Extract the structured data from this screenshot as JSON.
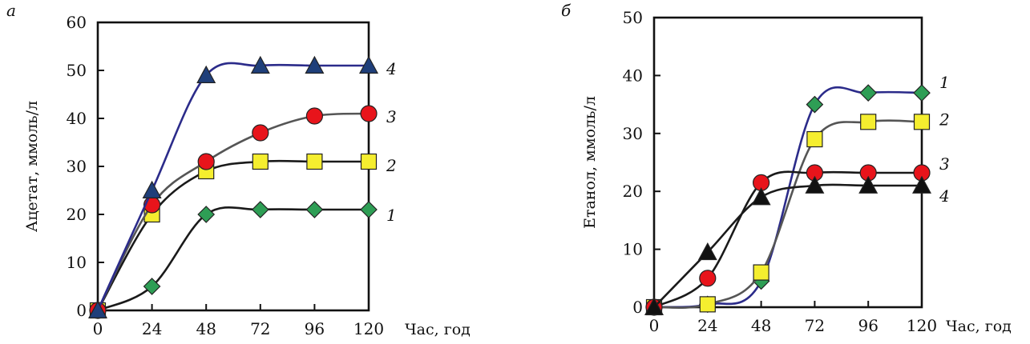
{
  "chart_data": [
    {
      "type": "line",
      "panel_label": "а",
      "xlabel": "Час, год",
      "ylabel": "Ацетат, ммоль/л",
      "x": [
        0,
        24,
        48,
        72,
        96,
        120
      ],
      "xlim": [
        0,
        120
      ],
      "ylim": [
        0,
        60
      ],
      "x_ticks": [
        0,
        24,
        48,
        72,
        96,
        120
      ],
      "y_ticks": [
        0,
        10,
        20,
        30,
        40,
        50,
        60
      ],
      "grid": false,
      "series": [
        {
          "name": "1",
          "marker": "diamond",
          "color": "#2e9e55",
          "line_color": "#1a1a1a",
          "values": [
            0,
            5,
            20,
            21,
            21,
            21
          ]
        },
        {
          "name": "2",
          "marker": "square",
          "color": "#f5ee2f",
          "line_color": "#1a1a1a",
          "values": [
            0,
            20,
            29,
            31,
            31,
            31
          ]
        },
        {
          "name": "3",
          "marker": "circle",
          "color": "#e8141b",
          "line_color": "#555555",
          "values": [
            0,
            22,
            31,
            37,
            40.5,
            41
          ]
        },
        {
          "name": "4",
          "marker": "triangle",
          "color": "#1f3f7a",
          "line_color": "#2b2b8a",
          "values": [
            0,
            25,
            49,
            51,
            51,
            51
          ]
        }
      ]
    },
    {
      "type": "line",
      "panel_label": "б",
      "xlabel": "Час, год",
      "ylabel": "Етанол, ммоль/л",
      "x": [
        0,
        24,
        48,
        72,
        96,
        120
      ],
      "xlim": [
        0,
        120
      ],
      "ylim": [
        0,
        50
      ],
      "x_ticks": [
        0,
        24,
        48,
        72,
        96,
        120
      ],
      "y_ticks": [
        0,
        10,
        20,
        30,
        40,
        50
      ],
      "grid": false,
      "series": [
        {
          "name": "1",
          "marker": "diamond",
          "color": "#2e9e55",
          "line_color": "#2b2b8a",
          "values": [
            0,
            0.5,
            4.5,
            35,
            37,
            37
          ]
        },
        {
          "name": "2",
          "marker": "square",
          "color": "#f5ee2f",
          "line_color": "#555555",
          "values": [
            0,
            0.5,
            6,
            29,
            32,
            32
          ]
        },
        {
          "name": "3",
          "marker": "circle",
          "color": "#e8141b",
          "line_color": "#1a1a1a",
          "values": [
            0,
            5,
            21.5,
            23.2,
            23.2,
            23.2
          ]
        },
        {
          "name": "4",
          "marker": "triangle",
          "color": "#111111",
          "line_color": "#1a1a1a",
          "values": [
            0,
            9.5,
            19,
            21,
            21,
            21
          ]
        }
      ]
    }
  ]
}
